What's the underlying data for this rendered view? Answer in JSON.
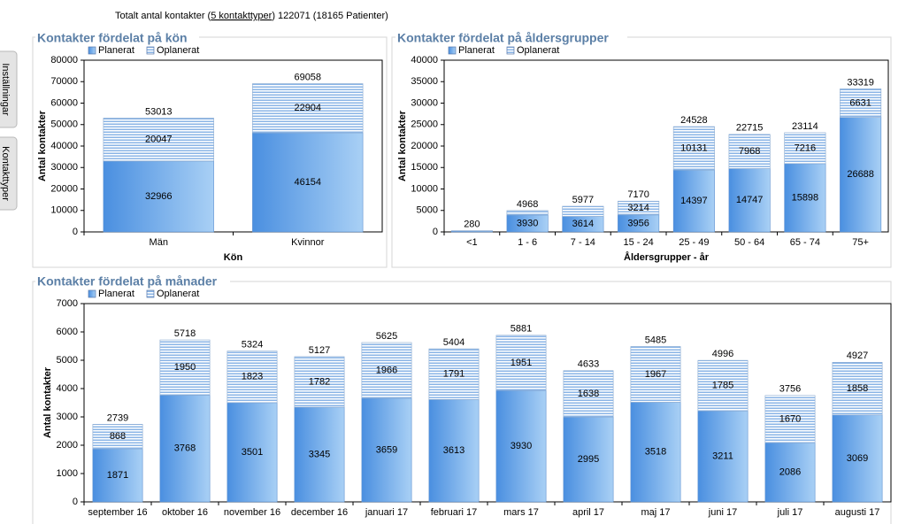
{
  "header": {
    "prefix": "Totalt antal kontakter (",
    "link": "5 kontakttyper",
    "suffix": ") 122071 (18165 Patienter)"
  },
  "side_tabs": [
    "Inställningar",
    "Kontakttyper"
  ],
  "chart_data": [
    {
      "type": "stacked_bar",
      "title": "Kontakter fördelat på kön",
      "xlabel": "Kön",
      "ylabel": "Antal kontakter",
      "categories": [
        "Män",
        "Kvinnor"
      ],
      "series": [
        {
          "name": "Planerat",
          "color": "#4a8fe0",
          "values": [
            32966,
            46154
          ]
        },
        {
          "name": "Oplanerat",
          "color": "#8ab4e6",
          "values": [
            20047,
            22904
          ]
        }
      ],
      "totals": [
        53013,
        69058
      ],
      "ylim": [
        0,
        80000
      ],
      "yticks": [
        0,
        10000,
        20000,
        30000,
        40000,
        50000,
        60000,
        70000,
        80000
      ],
      "grid": false
    },
    {
      "type": "stacked_bar",
      "title": "Kontakter fördelat på åldersgrupper",
      "xlabel": "Åldersgrupper - år",
      "ylabel": "Antal kontakter",
      "categories": [
        "<1",
        "1 - 6",
        "7 - 14",
        "15 - 24",
        "25 - 49",
        "50 - 64",
        "65 - 74",
        "75+"
      ],
      "series": [
        {
          "name": "Planerat",
          "color": "#4a8fe0",
          "values": [
            200,
            3930,
            3614,
            3956,
            14397,
            14747,
            15898,
            26688
          ],
          "value_labels": [
            null,
            "3930",
            "3614",
            "3956",
            "14397",
            "14747",
            "15898",
            "26688"
          ]
        },
        {
          "name": "Oplanerat",
          "color": "#8ab4e6",
          "values": [
            80,
            1038,
            2363,
            3214,
            10131,
            7968,
            7216,
            6631
          ],
          "value_labels": [
            null,
            null,
            null,
            "3214",
            "10131",
            "7968",
            "7216",
            "6631"
          ]
        }
      ],
      "totals": [
        280,
        4968,
        5977,
        7170,
        24528,
        22715,
        23114,
        33319
      ],
      "ylim": [
        0,
        40000
      ],
      "yticks": [
        0,
        5000,
        10000,
        15000,
        20000,
        25000,
        30000,
        35000,
        40000
      ],
      "grid": false
    },
    {
      "type": "stacked_bar",
      "title": "Kontakter fördelat på månader",
      "ylabel": "Antal kontakter",
      "categories": [
        "september 16",
        "oktober 16",
        "november 16",
        "december 16",
        "januari 17",
        "februari 17",
        "mars 17",
        "april 17",
        "maj 17",
        "juni 17",
        "juli 17",
        "augusti 17"
      ],
      "series": [
        {
          "name": "Planerat",
          "color": "#4a8fe0",
          "values": [
            1871,
            3768,
            3501,
            3345,
            3659,
            3613,
            3930,
            2995,
            3518,
            3211,
            2086,
            3069
          ]
        },
        {
          "name": "Oplanerat",
          "color": "#8ab4e6",
          "values": [
            868,
            1950,
            1823,
            1782,
            1966,
            1791,
            1951,
            1638,
            1967,
            1785,
            1670,
            1858
          ]
        }
      ],
      "totals": [
        2739,
        5718,
        5324,
        5127,
        5625,
        5404,
        5881,
        4633,
        5485,
        4996,
        3756,
        4927
      ],
      "ylim": [
        0,
        7000
      ],
      "yticks": [
        0,
        1000,
        2000,
        3000,
        4000,
        5000,
        6000,
        7000
      ],
      "grid": false
    }
  ]
}
